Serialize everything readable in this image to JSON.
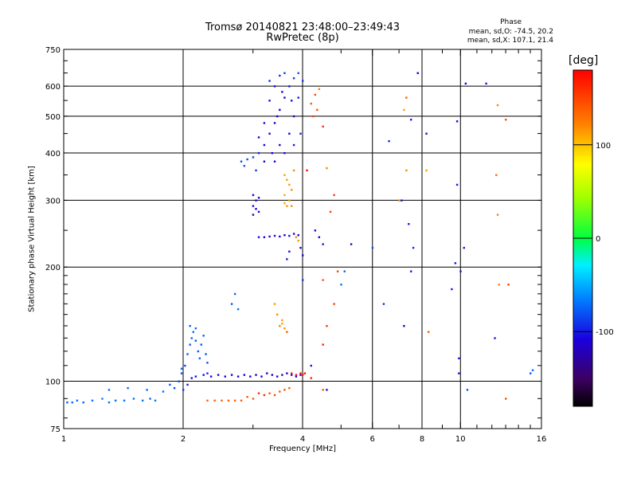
{
  "chart_data": {
    "type": "scatter",
    "title": "Tromsø 20140821 23:48:00–23:49:43",
    "subtitle": "RwPretec (8p)",
    "xlabel": "Frequency [MHz]",
    "ylabel": "Stationary phase Virtual Height [km]",
    "x_scale": "log",
    "y_scale": "log",
    "xlim": [
      1,
      16
    ],
    "ylim": [
      75,
      750
    ],
    "x_ticks": [
      1,
      2,
      4,
      6,
      8,
      10,
      16
    ],
    "x_tick_labels": [
      "1",
      "2",
      "4",
      "6",
      "8",
      "10",
      "16"
    ],
    "y_ticks": [
      75,
      100,
      200,
      300,
      400,
      500,
      600,
      750
    ],
    "y_tick_labels": [
      "75",
      "100",
      "200",
      "300",
      "400",
      "500",
      "600",
      "750"
    ],
    "grid": true,
    "phase_legend": {
      "heading": "Phase",
      "o_line": "mean, sd,O: -74.5, 20.2",
      "x_line": "mean, sd,X: 107.1, 21.4"
    },
    "colorbar": {
      "unit": "[deg]",
      "range": [
        -180,
        180
      ],
      "ticks": [
        100,
        0,
        -100
      ],
      "tick_labels": [
        "100",
        "0",
        "-100"
      ]
    },
    "point_color_value": "phase in degrees (colorbar)",
    "series": [
      {
        "values": [
          [
            1.02,
            88,
            -75
          ],
          [
            1.05,
            88,
            -72
          ],
          [
            1.08,
            89,
            -70
          ],
          [
            1.12,
            88,
            -74
          ],
          [
            1.18,
            89,
            -70
          ],
          [
            1.25,
            90,
            -65
          ],
          [
            1.3,
            88,
            -70
          ],
          [
            1.35,
            89,
            -72
          ],
          [
            1.42,
            89,
            -70
          ],
          [
            1.5,
            90,
            -68
          ],
          [
            1.58,
            89,
            -70
          ],
          [
            1.65,
            90,
            -72
          ],
          [
            1.7,
            89,
            -68
          ],
          [
            1.78,
            94,
            -70
          ],
          [
            1.3,
            95,
            -72
          ],
          [
            1.45,
            96,
            -70
          ],
          [
            1.62,
            95,
            -72
          ],
          [
            1.85,
            98,
            -78
          ],
          [
            1.9,
            96,
            -80
          ],
          [
            1.95,
            100,
            -85
          ],
          [
            1.98,
            105,
            -80
          ],
          [
            2.02,
            110,
            -82
          ],
          [
            2.05,
            118,
            -78
          ],
          [
            2.08,
            125,
            -76
          ],
          [
            2.1,
            130,
            -74
          ],
          [
            2.12,
            135,
            -72
          ],
          [
            2.15,
            128,
            -80
          ],
          [
            2.18,
            120,
            -78
          ],
          [
            2.2,
            115,
            -76
          ],
          [
            2.22,
            125,
            -80
          ],
          [
            2.25,
            132,
            -78
          ],
          [
            2.28,
            118,
            -80
          ],
          [
            2.3,
            112,
            -82
          ],
          [
            2.0,
            95,
            -90
          ],
          [
            2.05,
            98,
            -100
          ],
          [
            2.1,
            102,
            -105
          ],
          [
            1.98,
            108,
            -70
          ],
          [
            2.08,
            140,
            -75
          ],
          [
            2.15,
            138,
            -72
          ],
          [
            2.3,
            105,
            -95
          ]
        ]
      },
      {
        "values": [
          [
            2.15,
            103,
            -105
          ],
          [
            2.25,
            104,
            -110
          ],
          [
            2.35,
            103,
            -108
          ],
          [
            2.45,
            104,
            -112
          ],
          [
            2.55,
            103,
            -110
          ],
          [
            2.65,
            104,
            -108
          ],
          [
            2.75,
            103,
            -110
          ],
          [
            2.85,
            104,
            -112
          ],
          [
            2.95,
            103,
            -108
          ],
          [
            3.05,
            104,
            -110
          ],
          [
            3.15,
            103,
            -115
          ],
          [
            3.25,
            105,
            -112
          ],
          [
            3.35,
            104,
            -110
          ],
          [
            3.45,
            103,
            -112
          ],
          [
            3.55,
            104,
            -115
          ],
          [
            3.65,
            105,
            -110
          ],
          [
            3.75,
            104,
            -112
          ],
          [
            3.85,
            103,
            -110
          ],
          [
            3.95,
            104,
            -108
          ]
        ]
      },
      {
        "values": [
          [
            2.3,
            89,
            135
          ],
          [
            2.4,
            89,
            138
          ],
          [
            2.5,
            89,
            136
          ],
          [
            2.6,
            89,
            138
          ],
          [
            2.7,
            89,
            135
          ],
          [
            2.8,
            89,
            138
          ],
          [
            2.9,
            91,
            140
          ],
          [
            3.0,
            90,
            140
          ],
          [
            3.1,
            93,
            160
          ],
          [
            3.2,
            92,
            162
          ],
          [
            3.3,
            93,
            140
          ],
          [
            3.4,
            92,
            145
          ],
          [
            3.5,
            94,
            138
          ],
          [
            3.6,
            95,
            142
          ],
          [
            3.7,
            96,
            140
          ]
        ]
      },
      {
        "values": [
          [
            3.75,
            105,
            170
          ],
          [
            3.85,
            104,
            172
          ],
          [
            3.95,
            105,
            170
          ],
          [
            4.0,
            104,
            168
          ],
          [
            4.05,
            105,
            172
          ]
        ]
      },
      {
        "values": [
          [
            2.7,
            170,
            -75
          ],
          [
            2.65,
            160,
            -78
          ],
          [
            2.75,
            155,
            -72
          ],
          [
            3.4,
            160,
            115
          ],
          [
            3.45,
            150,
            118
          ],
          [
            3.55,
            145,
            112
          ],
          [
            3.5,
            140,
            120
          ],
          [
            3.6,
            138,
            115
          ],
          [
            3.65,
            135,
            140
          ],
          [
            3.55,
            142,
            112
          ]
        ]
      },
      {
        "values": [
          [
            3.1,
            240,
            -105
          ],
          [
            3.2,
            240,
            -108
          ],
          [
            3.3,
            241,
            -110
          ],
          [
            3.4,
            242,
            -105
          ],
          [
            3.5,
            241,
            -108
          ],
          [
            3.6,
            243,
            -110
          ],
          [
            3.7,
            242,
            -105
          ],
          [
            3.8,
            245,
            -108
          ],
          [
            3.9,
            243,
            -110
          ],
          [
            3.85,
            240,
            120
          ],
          [
            3.9,
            235,
            115
          ],
          [
            3.95,
            225,
            -110
          ],
          [
            4.0,
            215,
            -105
          ],
          [
            3.7,
            220,
            -105
          ],
          [
            3.65,
            210,
            -100
          ]
        ]
      },
      {
        "values": [
          [
            3.0,
            310,
            -110
          ],
          [
            3.05,
            300,
            -112
          ],
          [
            3.0,
            290,
            -108
          ],
          [
            3.1,
            305,
            -115
          ],
          [
            3.05,
            285,
            -110
          ],
          [
            3.1,
            280,
            -108
          ],
          [
            3.0,
            275,
            -112
          ]
        ]
      },
      {
        "values": [
          [
            3.6,
            350,
            110
          ],
          [
            3.65,
            340,
            112
          ],
          [
            3.7,
            330,
            115
          ],
          [
            3.75,
            320,
            118
          ],
          [
            3.6,
            310,
            110
          ],
          [
            3.7,
            300,
            112
          ],
          [
            3.65,
            290,
            115
          ],
          [
            3.8,
            360,
            120
          ],
          [
            3.75,
            290,
            118
          ],
          [
            3.6,
            295,
            112
          ]
        ]
      },
      {
        "values": [
          [
            2.8,
            380,
            -80
          ],
          [
            2.9,
            385,
            -82
          ],
          [
            3.0,
            390,
            -85
          ],
          [
            3.1,
            400,
            -95
          ],
          [
            3.2,
            420,
            -110
          ],
          [
            3.3,
            450,
            -115
          ],
          [
            3.4,
            480,
            -120
          ],
          [
            3.5,
            520,
            -115
          ],
          [
            3.6,
            560,
            -110
          ],
          [
            3.7,
            600,
            -100
          ],
          [
            3.8,
            630,
            -90
          ],
          [
            3.9,
            650,
            -80
          ],
          [
            3.2,
            480,
            -105
          ],
          [
            3.3,
            550,
            -110
          ],
          [
            3.4,
            600,
            -100
          ],
          [
            3.5,
            640,
            -90
          ],
          [
            3.6,
            650,
            -85
          ],
          [
            3.35,
            400,
            -110
          ],
          [
            3.5,
            420,
            -115
          ],
          [
            3.7,
            450,
            -110
          ],
          [
            3.8,
            500,
            -105
          ],
          [
            3.9,
            560,
            -100
          ],
          [
            4.0,
            620,
            -90
          ],
          [
            3.1,
            440,
            -120
          ],
          [
            3.2,
            380,
            -115
          ],
          [
            3.4,
            380,
            -110
          ],
          [
            3.6,
            400,
            -105
          ],
          [
            3.8,
            420,
            -100
          ],
          [
            3.95,
            450,
            -95
          ],
          [
            3.3,
            620,
            -95
          ],
          [
            3.55,
            580,
            -110
          ],
          [
            3.75,
            550,
            -105
          ],
          [
            3.05,
            360,
            -90
          ],
          [
            2.85,
            370,
            -78
          ],
          [
            3.45,
            500,
            -120
          ]
        ]
      },
      {
        "values": [
          [
            4.2,
            540,
            140
          ],
          [
            4.3,
            570,
            145
          ],
          [
            4.25,
            500,
            150
          ],
          [
            4.4,
            590,
            120
          ],
          [
            4.5,
            470,
            160
          ],
          [
            4.35,
            520,
            145
          ],
          [
            4.1,
            360,
            175
          ],
          [
            4.6,
            365,
            120
          ],
          [
            4.3,
            250,
            -105
          ],
          [
            4.4,
            240,
            -110
          ],
          [
            4.5,
            230,
            -100
          ],
          [
            4.7,
            280,
            150
          ],
          [
            4.8,
            310,
            155
          ],
          [
            4.0,
            185,
            -90
          ],
          [
            4.5,
            185,
            140
          ],
          [
            4.9,
            195,
            150
          ],
          [
            4.8,
            160,
            150
          ],
          [
            4.6,
            140,
            155
          ],
          [
            4.5,
            125,
            165
          ],
          [
            4.2,
            102,
            165
          ],
          [
            4.2,
            110,
            -100
          ],
          [
            4.6,
            95,
            -105
          ],
          [
            4.5,
            95,
            140
          ],
          [
            5.3,
            230,
            -110
          ],
          [
            5.1,
            195,
            -75
          ],
          [
            5.0,
            180,
            -70
          ],
          [
            6.0,
            225,
            -80
          ],
          [
            6.4,
            160,
            -90
          ],
          [
            6.6,
            430,
            -95
          ],
          [
            7.0,
            300,
            120
          ],
          [
            7.2,
            520,
            110
          ],
          [
            7.3,
            560,
            140
          ],
          [
            7.5,
            490,
            -100
          ],
          [
            7.1,
            300,
            -105
          ],
          [
            7.3,
            360,
            120
          ],
          [
            7.4,
            260,
            -100
          ],
          [
            7.2,
            140,
            -110
          ],
          [
            7.5,
            195,
            -100
          ],
          [
            7.6,
            225,
            -95
          ],
          [
            7.8,
            650,
            -115
          ],
          [
            8.2,
            450,
            -105
          ],
          [
            8.3,
            135,
            140
          ],
          [
            8.2,
            360,
            110
          ],
          [
            9.5,
            175,
            -100
          ],
          [
            9.7,
            205,
            -100
          ],
          [
            9.8,
            330,
            -100
          ],
          [
            9.8,
            485,
            -110
          ],
          [
            9.9,
            105,
            -100
          ],
          [
            9.9,
            115,
            -100
          ],
          [
            10.0,
            195,
            -100
          ],
          [
            10.2,
            225,
            -100
          ],
          [
            10.4,
            95,
            -80
          ],
          [
            10.3,
            610,
            -110
          ],
          [
            11.6,
            610,
            -100
          ],
          [
            12.2,
            130,
            -100
          ],
          [
            12.4,
            535,
            120
          ],
          [
            12.3,
            350,
            130
          ],
          [
            12.4,
            275,
            120
          ],
          [
            12.5,
            180,
            120
          ],
          [
            13.0,
            490,
            145
          ],
          [
            13.2,
            180,
            155
          ],
          [
            13.0,
            90,
            145
          ],
          [
            15.0,
            105,
            -80
          ],
          [
            15.2,
            107,
            -70
          ]
        ]
      }
    ]
  }
}
